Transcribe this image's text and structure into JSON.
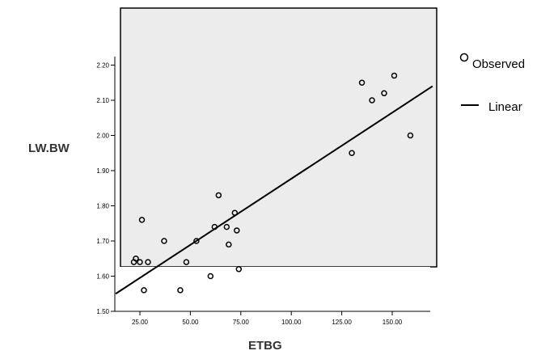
{
  "chart_data": {
    "type": "scatter",
    "title": "",
    "xlabel": "ETBG",
    "ylabel": "LW.BW",
    "xlim": [
      13,
      170
    ],
    "ylim": [
      1.5,
      2.25
    ],
    "x_ticks": [
      "25.00",
      "50.00",
      "75.00",
      "100.00",
      "125.00",
      "150.00"
    ],
    "y_ticks": [
      "1.50",
      "1.60",
      "1.70",
      "1.80",
      "1.90",
      "2.00",
      "2.10",
      "2.20"
    ],
    "legend": {
      "position": "right",
      "observed_label": "Observed",
      "linear_label": "Linear"
    },
    "observed": {
      "x": [
        22,
        23,
        25,
        26,
        27,
        29,
        37,
        45,
        48,
        53,
        60,
        62,
        64,
        68,
        69,
        72,
        73,
        74,
        130,
        135,
        140,
        146,
        151,
        159
      ],
      "y": [
        1.64,
        1.65,
        1.64,
        1.76,
        1.56,
        1.64,
        1.7,
        1.56,
        1.64,
        1.7,
        1.6,
        1.74,
        1.83,
        1.74,
        1.69,
        1.78,
        1.73,
        1.62,
        1.95,
        2.15,
        2.1,
        2.12,
        2.17,
        2.0
      ]
    },
    "linear_fit": {
      "x": [
        13,
        170
      ],
      "y": [
        1.55,
        2.14
      ]
    }
  }
}
